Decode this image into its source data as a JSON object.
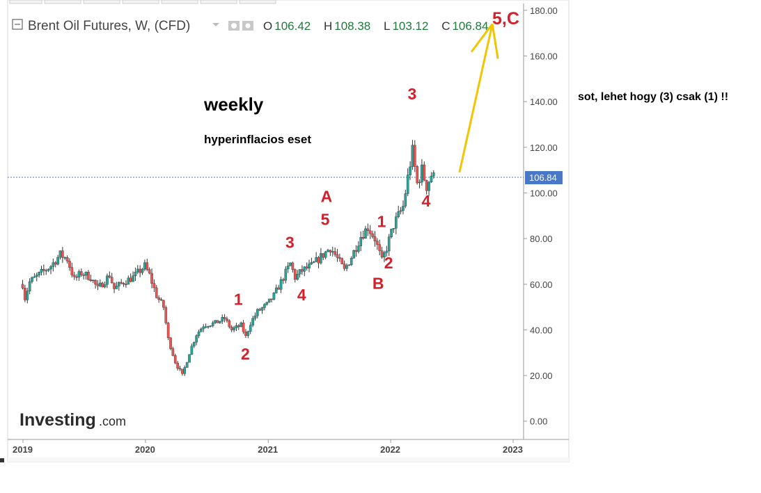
{
  "header": {
    "symbol_title": "Brent Oil Futures, W, (CFD)",
    "open_label": "O",
    "open": "106.42",
    "high_label": "H",
    "high": "108.38",
    "low_label": "L",
    "low": "103.12",
    "close_label": "C",
    "close": "106.84"
  },
  "annotations": {
    "weekly": "weekly",
    "subtitle": "hyperinflacios eset",
    "side_note": "sot, lehet hogy (3) csak (1) !!",
    "target_label": "5,C"
  },
  "branding": {
    "logo_main": "Investing",
    "logo_suffix": ".com"
  },
  "colors": {
    "up": "#26a69a",
    "down": "#ef5350",
    "wick": "#333333",
    "wave_label": "#d3202b",
    "arrow": "#f2c500",
    "price_tag": "#4a78c9",
    "header_value": "#1e7a3c"
  },
  "chart_data": {
    "type": "candlestick",
    "timeframe": "W",
    "x_ticks": [
      "2019",
      "2020",
      "2021",
      "2022",
      "2023"
    ],
    "y_ticks": [
      "0.00",
      "20.00",
      "40.00",
      "60.00",
      "80.00",
      "100.00",
      "120.00",
      "140.00",
      "160.00",
      "180.00"
    ],
    "ylim": [
      -8,
      183
    ],
    "last_price": "106.84",
    "last_price_value": 106.84,
    "price_path": [
      [
        "2018-12-31",
        60
      ],
      [
        "2019-01-07",
        54
      ],
      [
        "2019-01-21",
        61
      ],
      [
        "2019-02-25",
        65
      ],
      [
        "2019-03-25",
        68
      ],
      [
        "2019-04-22",
        73
      ],
      [
        "2019-05-13",
        71
      ],
      [
        "2019-06-03",
        62
      ],
      [
        "2019-06-24",
        65
      ],
      [
        "2019-07-22",
        63
      ],
      [
        "2019-08-12",
        58
      ],
      [
        "2019-09-16",
        64
      ],
      [
        "2019-09-30",
        58
      ],
      [
        "2019-10-28",
        61
      ],
      [
        "2019-11-25",
        63
      ],
      [
        "2019-12-30",
        68
      ],
      [
        "2020-01-13",
        64
      ],
      [
        "2020-02-03",
        55
      ],
      [
        "2020-02-24",
        50
      ],
      [
        "2020-03-09",
        36
      ],
      [
        "2020-03-30",
        26
      ],
      [
        "2020-04-20",
        20
      ],
      [
        "2020-05-11",
        30
      ],
      [
        "2020-06-01",
        38
      ],
      [
        "2020-06-22",
        42
      ],
      [
        "2020-07-27",
        43
      ],
      [
        "2020-08-24",
        45
      ],
      [
        "2020-09-14",
        40
      ],
      [
        "2020-10-12",
        42
      ],
      [
        "2020-10-26",
        37
      ],
      [
        "2020-11-09",
        43
      ],
      [
        "2020-11-30",
        48
      ],
      [
        "2020-12-28",
        51
      ],
      [
        "2021-01-18",
        55
      ],
      [
        "2021-02-15",
        63
      ],
      [
        "2021-03-08",
        69
      ],
      [
        "2021-03-22",
        63
      ],
      [
        "2021-04-12",
        66
      ],
      [
        "2021-05-10",
        68
      ],
      [
        "2021-06-07",
        72
      ],
      [
        "2021-07-05",
        76
      ],
      [
        "2021-07-19",
        73
      ],
      [
        "2021-08-16",
        66
      ],
      [
        "2021-09-06",
        72
      ],
      [
        "2021-10-04",
        81
      ],
      [
        "2021-10-25",
        85
      ],
      [
        "2021-11-15",
        80
      ],
      [
        "2021-12-06",
        70
      ],
      [
        "2021-12-20",
        76
      ],
      [
        "2022-01-10",
        86
      ],
      [
        "2022-02-07",
        94
      ],
      [
        "2022-02-28",
        113
      ],
      [
        "2022-03-07",
        118
      ],
      [
        "2022-03-21",
        104
      ],
      [
        "2022-04-04",
        110
      ],
      [
        "2022-04-18",
        103
      ],
      [
        "2022-05-02",
        108
      ],
      [
        "2022-05-09",
        106.84
      ]
    ],
    "wave_labels": [
      {
        "text": "1",
        "date": "2020-10-05",
        "price": 51
      },
      {
        "text": "2",
        "date": "2020-10-26",
        "price": 27
      },
      {
        "text": "3",
        "date": "2021-03-08",
        "price": 76
      },
      {
        "text": "4",
        "date": "2021-04-12",
        "price": 53
      },
      {
        "text": "A",
        "date": "2021-06-21",
        "price": 96
      },
      {
        "text": "5",
        "date": "2021-06-21",
        "price": 86
      },
      {
        "text": "1",
        "date": "2021-12-06",
        "price": 85
      },
      {
        "text": "2",
        "date": "2021-12-27",
        "price": 67
      },
      {
        "text": "B",
        "date": "2021-11-22",
        "price": 58
      },
      {
        "text": "3",
        "date": "2022-03-07",
        "price": 141
      },
      {
        "text": "4",
        "date": "2022-04-18",
        "price": 94
      }
    ],
    "projection": {
      "from_date": "2022-07-25",
      "from_price": 109,
      "to_date": "2022-10-31",
      "to_price": 174
    }
  }
}
